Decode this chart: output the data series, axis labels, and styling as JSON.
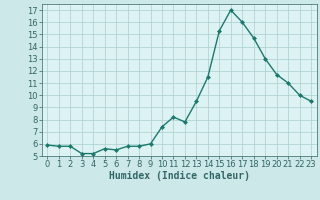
{
  "x": [
    0,
    1,
    2,
    3,
    4,
    5,
    6,
    7,
    8,
    9,
    10,
    11,
    12,
    13,
    14,
    15,
    16,
    17,
    18,
    19,
    20,
    21,
    22,
    23
  ],
  "y": [
    5.9,
    5.8,
    5.8,
    5.2,
    5.2,
    5.6,
    5.5,
    5.8,
    5.8,
    6.0,
    7.4,
    8.2,
    7.8,
    9.5,
    11.5,
    15.3,
    17.0,
    16.0,
    14.7,
    13.0,
    11.7,
    11.0,
    10.0,
    9.5
  ],
  "line_color": "#1a7a6e",
  "marker": "D",
  "marker_size": 2.0,
  "bg_color": "#cce8e8",
  "grid_color": "#aacece",
  "plot_bg": "#ddf2f2",
  "xlabel": "Humidex (Indice chaleur)",
  "xlabel_fontsize": 7,
  "tick_fontsize": 6,
  "ylim": [
    5,
    17.5
  ],
  "xlim": [
    -0.5,
    23.5
  ],
  "yticks": [
    5,
    6,
    7,
    8,
    9,
    10,
    11,
    12,
    13,
    14,
    15,
    16,
    17
  ],
  "xticks": [
    0,
    1,
    2,
    3,
    4,
    5,
    6,
    7,
    8,
    9,
    10,
    11,
    12,
    13,
    14,
    15,
    16,
    17,
    18,
    19,
    20,
    21,
    22,
    23
  ],
  "spine_color": "#336666",
  "linewidth": 1.0
}
